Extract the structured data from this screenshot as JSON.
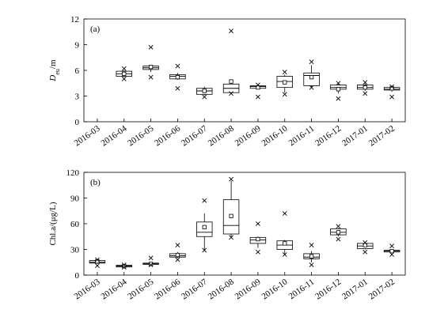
{
  "chart_data": [
    {
      "type": "box",
      "panel_label": "(a)",
      "ylabel": "D_eu/m",
      "ylim": [
        0,
        12
      ],
      "yticks": [
        "0",
        "3",
        "6",
        "9",
        "12"
      ],
      "categories": [
        "2016-03",
        "2016-04",
        "2016-05",
        "2016-06",
        "2016-07",
        "2016-08",
        "2016-09",
        "2016-10",
        "2016-11",
        "2016-12",
        "2017-01",
        "2017-02"
      ],
      "boxes": [
        null,
        {
          "q1": 5.3,
          "median": 5.6,
          "q3": 5.9,
          "whisker_low": 5.2,
          "whisker_high": 6.0,
          "mean": 5.6,
          "outliers": [
            6.2,
            5.0
          ]
        },
        {
          "q1": 6.1,
          "median": 6.3,
          "q3": 6.5,
          "whisker_low": 5.8,
          "whisker_high": 6.6,
          "mean": 6.4,
          "outliers": [
            8.7,
            5.2
          ]
        },
        {
          "q1": 5.0,
          "median": 5.3,
          "q3": 5.5,
          "whisker_low": 4.9,
          "whisker_high": 5.7,
          "mean": 5.2,
          "outliers": [
            6.5,
            3.9
          ]
        },
        {
          "q1": 3.2,
          "median": 3.6,
          "q3": 3.9,
          "whisker_low": 3.1,
          "whisker_high": 4.1,
          "mean": 3.6,
          "outliers": [
            2.9
          ]
        },
        {
          "q1": 3.4,
          "median": 3.9,
          "q3": 4.4,
          "whisker_low": 3.3,
          "whisker_high": 4.6,
          "mean": 4.7,
          "outliers": [
            10.6,
            3.3
          ]
        },
        {
          "q1": 3.9,
          "median": 4.1,
          "q3": 4.2,
          "whisker_low": 3.8,
          "whisker_high": 4.3,
          "mean": 4.0,
          "outliers": [
            4.3,
            2.9
          ]
        },
        {
          "q1": 4.0,
          "median": 4.7,
          "q3": 5.3,
          "whisker_low": 3.4,
          "whisker_high": 5.5,
          "mean": 4.6,
          "outliers": [
            5.8,
            3.2
          ]
        },
        {
          "q1": 4.2,
          "median": 5.4,
          "q3": 5.7,
          "whisker_low": 4.0,
          "whisker_high": 6.6,
          "mean": 5.2,
          "outliers": [
            7.0,
            4.0
          ]
        },
        {
          "q1": 3.8,
          "median": 4.0,
          "q3": 4.3,
          "whisker_low": 3.3,
          "whisker_high": 4.5,
          "mean": 3.8,
          "outliers": [
            4.5,
            2.7
          ]
        },
        {
          "q1": 3.8,
          "median": 4.0,
          "q3": 4.3,
          "whisker_low": 3.6,
          "whisker_high": 4.5,
          "mean": 4.0,
          "outliers": [
            4.6,
            3.3
          ]
        },
        {
          "q1": 3.7,
          "median": 3.8,
          "q3": 4.0,
          "whisker_low": 3.5,
          "whisker_high": 4.1,
          "mean": 3.9,
          "outliers": [
            4.1,
            2.9
          ]
        }
      ]
    },
    {
      "type": "box",
      "panel_label": "(b)",
      "ylabel": "Chl.a/(μg/L)",
      "ylim": [
        0,
        120
      ],
      "yticks": [
        "0",
        "30",
        "60",
        "90",
        "120"
      ],
      "categories": [
        "2016-03",
        "2016-04",
        "2016-05",
        "2016-06",
        "2016-07",
        "2016-08",
        "2016-09",
        "2016-10",
        "2016-11",
        "2016-12",
        "2017-01",
        "2017-02"
      ],
      "boxes": [
        {
          "q1": 14,
          "median": 15,
          "q3": 17,
          "whisker_low": 13,
          "whisker_high": 18,
          "mean": 16,
          "outliers": [
            18,
            11
          ]
        },
        {
          "q1": 9.5,
          "median": 10.5,
          "q3": 11.5,
          "whisker_low": 9,
          "whisker_high": 12,
          "mean": 10.5,
          "outliers": [
            12,
            9
          ]
        },
        {
          "q1": 12.5,
          "median": 13.5,
          "q3": 14,
          "whisker_low": 12,
          "whisker_high": 15,
          "mean": 13,
          "outliers": [
            20,
            12
          ]
        },
        {
          "q1": 21,
          "median": 22.5,
          "q3": 25,
          "whisker_low": 20,
          "whisker_high": 27,
          "mean": 23.5,
          "outliers": [
            35,
            18
          ]
        },
        {
          "q1": 45,
          "median": 50,
          "q3": 62,
          "whisker_low": 29,
          "whisker_high": 72,
          "mean": 56,
          "outliers": [
            87,
            29
          ]
        },
        {
          "q1": 48,
          "median": 58,
          "q3": 88,
          "whisker_low": 45,
          "whisker_high": 110,
          "mean": 69,
          "outliers": [
            112,
            44
          ]
        },
        {
          "q1": 37,
          "median": 41,
          "q3": 44,
          "whisker_low": 32,
          "whisker_high": 45,
          "mean": 42,
          "outliers": [
            60,
            27
          ]
        },
        {
          "q1": 30,
          "median": 35,
          "q3": 40,
          "whisker_low": 25,
          "whisker_high": 41,
          "mean": 37,
          "outliers": [
            72,
            24
          ]
        },
        {
          "q1": 19,
          "median": 21,
          "q3": 25,
          "whisker_low": 15,
          "whisker_high": 28,
          "mean": 22,
          "outliers": [
            35,
            12
          ]
        },
        {
          "q1": 47,
          "median": 50,
          "q3": 54,
          "whisker_low": 45,
          "whisker_high": 55,
          "mean": 50,
          "outliers": [
            57,
            42
          ]
        },
        {
          "q1": 31,
          "median": 34,
          "q3": 37,
          "whisker_low": 30,
          "whisker_high": 38,
          "mean": 35,
          "outliers": [
            38,
            27
          ]
        },
        {
          "q1": 27,
          "median": 28,
          "q3": 29,
          "whisker_low": 27,
          "whisker_high": 30,
          "mean": 28,
          "outliers": [
            34,
            24
          ]
        }
      ]
    }
  ]
}
